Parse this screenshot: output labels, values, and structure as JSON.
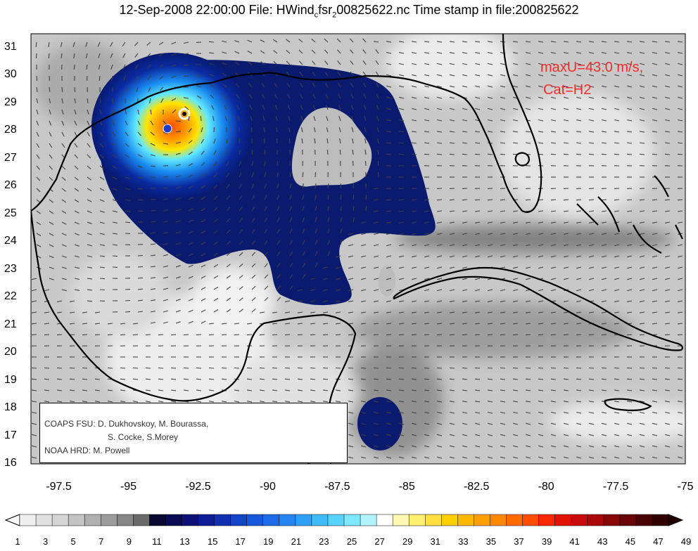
{
  "title": {
    "prefix": "12-Sep-2008 22:00:00 File: HWind",
    "sub1": "c",
    "mid": "fsr",
    "sub2": "2",
    "suffix": "00825622.nc Time stamp in file:200825622"
  },
  "map": {
    "lon_range": [
      -98.5,
      -75
    ],
    "lat_range": [
      16,
      31.5
    ],
    "x_ticks": [
      "-97.5",
      "-95",
      "-92.5",
      "-90",
      "-87.5",
      "-85",
      "-82.5",
      "-80",
      "-77.5",
      "-75"
    ],
    "y_ticks": [
      "31",
      "30",
      "29",
      "28",
      "27",
      "26",
      "25",
      "24",
      "23",
      "22",
      "21",
      "20",
      "19",
      "18",
      "17",
      "16"
    ],
    "storm_center": {
      "lon": -93.2,
      "lat": 28.55
    },
    "grid_low_center": {
      "lon": -93.8,
      "lat": 28.1
    },
    "colors": {
      "coast": "#000000",
      "background": "#c8c8c8"
    }
  },
  "annotation": {
    "line1": "maxU=43.0 m/s,",
    "line2": "Cat=H2",
    "color": "#ff2a2a"
  },
  "credits": {
    "line1": "COAPS FSU: D. Dukhovskoy, M. Bourassa,",
    "line2": "S. Cocke, S.Morey",
    "line3": "NOAA HRD:  M. Powell"
  },
  "colorbar": {
    "labels": [
      "1",
      "3",
      "5",
      "7",
      "9",
      "11",
      "13",
      "15",
      "17",
      "19",
      "21",
      "23",
      "25",
      "27",
      "29",
      "31",
      "33",
      "35",
      "37",
      "39",
      "41",
      "43",
      "45",
      "47",
      "49"
    ],
    "colors": [
      "#f0f0f0",
      "#e0e0e0",
      "#d4d4d4",
      "#c4c4c4",
      "#b0b0b0",
      "#9c9c9c",
      "#868686",
      "#6a6a6a",
      "#080830",
      "#0a0a55",
      "#0c1278",
      "#0e1e96",
      "#1030b0",
      "#1444c8",
      "#1858dc",
      "#1c6ce8",
      "#2484f0",
      "#30a0f4",
      "#40bcf8",
      "#58d4fa",
      "#80e8fc",
      "#b0f4fe",
      "#ffffff",
      "#fff8b0",
      "#fff070",
      "#ffe040",
      "#ffd000",
      "#ffb800",
      "#ffa000",
      "#ff8800",
      "#ff6a00",
      "#ff4c00",
      "#f82800",
      "#e01400",
      "#c80a0a",
      "#a80808",
      "#880606",
      "#680404",
      "#480202",
      "#300000"
    ]
  }
}
